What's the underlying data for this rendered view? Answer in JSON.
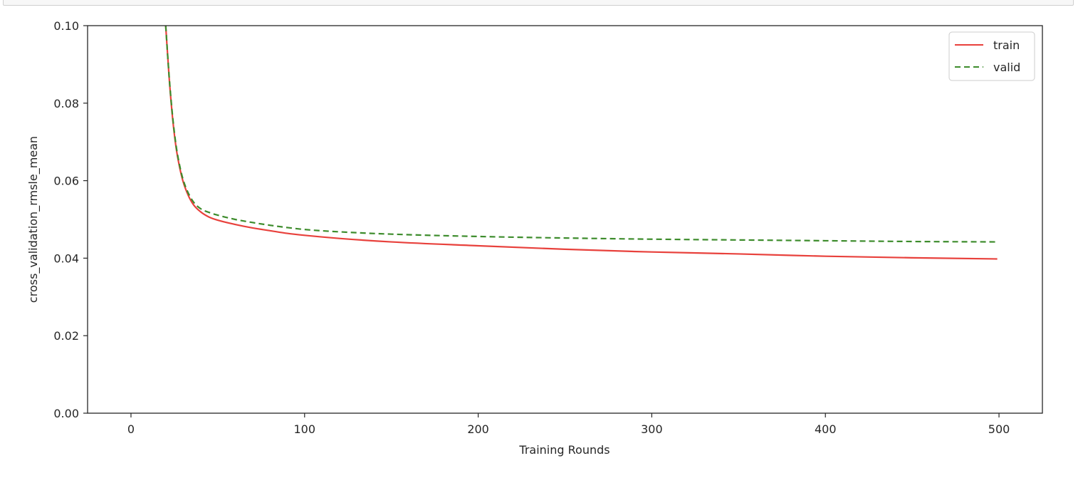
{
  "chart_data": {
    "type": "line",
    "title": "",
    "xlabel": "Training Rounds",
    "ylabel": "cross_validation_rmsle_mean",
    "xlim": [
      -25,
      525
    ],
    "ylim": [
      0.0,
      0.1
    ],
    "xticks": [
      0,
      100,
      200,
      300,
      400,
      500
    ],
    "xtick_labels": [
      "0",
      "100",
      "200",
      "300",
      "400",
      "500"
    ],
    "yticks": [
      0.0,
      0.02,
      0.04,
      0.06,
      0.08,
      0.1
    ],
    "ytick_labels": [
      "0.00",
      "0.02",
      "0.04",
      "0.06",
      "0.08",
      "0.10"
    ],
    "grid": false,
    "legend_position": "top-right",
    "series": [
      {
        "name": "train",
        "color": "#e8413c",
        "style": "solid",
        "x": [
          20,
          22,
          24,
          26,
          28,
          30,
          33,
          36,
          40,
          45,
          50,
          60,
          70,
          80,
          90,
          100,
          120,
          150,
          200,
          250,
          300,
          350,
          400,
          450,
          499
        ],
        "y": [
          0.1,
          0.0865,
          0.076,
          0.0685,
          0.0635,
          0.0598,
          0.0562,
          0.0538,
          0.052,
          0.0506,
          0.0498,
          0.0487,
          0.0478,
          0.0471,
          0.0464,
          0.0459,
          0.0451,
          0.0442,
          0.0432,
          0.0423,
          0.0416,
          0.0411,
          0.0405,
          0.0401,
          0.0398
        ]
      },
      {
        "name": "valid",
        "color": "#3d8c2c",
        "style": "dashed",
        "x": [
          20,
          22,
          24,
          26,
          28,
          30,
          33,
          36,
          40,
          45,
          50,
          60,
          70,
          80,
          90,
          100,
          120,
          150,
          200,
          250,
          300,
          350,
          400,
          450,
          498
        ],
        "y": [
          0.1,
          0.0868,
          0.0765,
          0.069,
          0.064,
          0.0603,
          0.0568,
          0.0545,
          0.0528,
          0.0518,
          0.0511,
          0.05,
          0.0492,
          0.0485,
          0.0479,
          0.0474,
          0.0468,
          0.0462,
          0.0456,
          0.0452,
          0.0449,
          0.0447,
          0.0445,
          0.0443,
          0.0442
        ]
      }
    ]
  }
}
